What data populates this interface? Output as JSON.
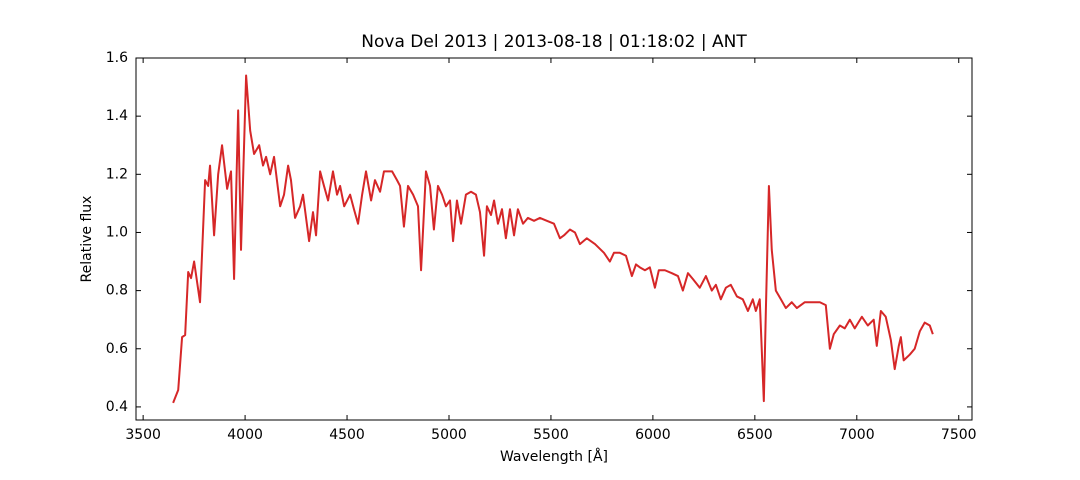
{
  "chart_data": {
    "type": "line",
    "title": "Nova Del 2013 | 2013-08-18 | 01:18:02 | ANT",
    "xlabel": "Wavelength [Å]",
    "ylabel": "Relative flux",
    "xlim": [
      3465,
      7565
    ],
    "ylim": [
      0.355,
      1.6
    ],
    "xticks": [
      3500,
      4000,
      4500,
      5000,
      5500,
      6000,
      6500,
      7000,
      7500
    ],
    "yticks": [
      0.4,
      0.6,
      0.8,
      {
        "value": 1.0,
        "label": "1.0"
      },
      1.2,
      1.4,
      1.6
    ],
    "grid": false,
    "ticks_both_sides": true,
    "series": [
      {
        "name": "Nova Del 2013",
        "color": "#d62728",
        "x": [
          3647,
          3672,
          3691,
          3706,
          3721,
          3735,
          3750,
          3779,
          3804,
          3819,
          3828,
          3848,
          3868,
          3887,
          3912,
          3931,
          3946,
          3966,
          3980,
          4005,
          4025,
          4044,
          4069,
          4088,
          4103,
          4123,
          4142,
          4172,
          4191,
          4211,
          4225,
          4245,
          4270,
          4284,
          4314,
          4333,
          4348,
          4368,
          4387,
          4407,
          4431,
          4451,
          4466,
          4486,
          4515,
          4534,
          4554,
          4574,
          4593,
          4618,
          4637,
          4662,
          4681,
          4701,
          4721,
          4745,
          4760,
          4779,
          4799,
          4824,
          4848,
          4863,
          4887,
          4907,
          4926,
          4946,
          4966,
          4985,
          5005,
          5020,
          5039,
          5059,
          5083,
          5108,
          5132,
          5152,
          5172,
          5186,
          5206,
          5221,
          5240,
          5260,
          5279,
          5299,
          5319,
          5338,
          5363,
          5387,
          5417,
          5446,
          5480,
          5515,
          5544,
          5564,
          5593,
          5618,
          5642,
          5676,
          5716,
          5760,
          5789,
          5809,
          5838,
          5868,
          5897,
          5917,
          5936,
          5961,
          5985,
          6010,
          6029,
          6059,
          6093,
          6123,
          6147,
          6172,
          6196,
          6230,
          6260,
          6289,
          6309,
          6333,
          6358,
          6382,
          6412,
          6441,
          6466,
          6490,
          6505,
          6524,
          6544,
          6554,
          6569,
          6583,
          6603,
          6628,
          6652,
          6681,
          6706,
          6745,
          6779,
          6819,
          6848,
          6868,
          6887,
          6917,
          6941,
          6966,
          6990,
          7025,
          7054,
          7083,
          7098,
          7118,
          7142,
          7167,
          7186,
          7206,
          7216,
          7230,
          7260,
          7284,
          7309,
          7333,
          7358,
          7373
        ],
        "values": [
          0.414,
          0.458,
          0.64,
          0.647,
          0.864,
          0.843,
          0.9,
          0.76,
          1.18,
          1.16,
          1.23,
          0.99,
          1.2,
          1.3,
          1.15,
          1.21,
          0.84,
          1.42,
          0.94,
          1.54,
          1.35,
          1.27,
          1.3,
          1.23,
          1.26,
          1.2,
          1.26,
          1.09,
          1.13,
          1.23,
          1.18,
          1.05,
          1.09,
          1.13,
          0.97,
          1.07,
          0.99,
          1.21,
          1.16,
          1.11,
          1.21,
          1.13,
          1.16,
          1.09,
          1.13,
          1.08,
          1.03,
          1.13,
          1.21,
          1.11,
          1.18,
          1.14,
          1.21,
          1.21,
          1.21,
          1.18,
          1.16,
          1.02,
          1.16,
          1.13,
          1.09,
          0.87,
          1.21,
          1.16,
          1.01,
          1.16,
          1.13,
          1.09,
          1.11,
          0.97,
          1.11,
          1.03,
          1.13,
          1.14,
          1.13,
          1.07,
          0.92,
          1.09,
          1.06,
          1.11,
          1.03,
          1.08,
          0.98,
          1.08,
          0.99,
          1.08,
          1.03,
          1.05,
          1.04,
          1.05,
          1.04,
          1.03,
          0.98,
          0.99,
          1.01,
          1.0,
          0.96,
          0.98,
          0.96,
          0.93,
          0.9,
          0.93,
          0.93,
          0.92,
          0.85,
          0.89,
          0.88,
          0.87,
          0.88,
          0.81,
          0.87,
          0.87,
          0.86,
          0.85,
          0.8,
          0.86,
          0.84,
          0.81,
          0.85,
          0.8,
          0.82,
          0.77,
          0.81,
          0.82,
          0.78,
          0.77,
          0.73,
          0.77,
          0.73,
          0.77,
          0.42,
          0.73,
          1.16,
          0.94,
          0.8,
          0.77,
          0.74,
          0.76,
          0.74,
          0.76,
          0.76,
          0.76,
          0.75,
          0.6,
          0.65,
          0.68,
          0.67,
          0.7,
          0.67,
          0.71,
          0.68,
          0.7,
          0.61,
          0.73,
          0.71,
          0.63,
          0.53,
          0.61,
          0.64,
          0.56,
          0.58,
          0.6,
          0.66,
          0.69,
          0.68,
          0.65
        ]
      }
    ]
  }
}
